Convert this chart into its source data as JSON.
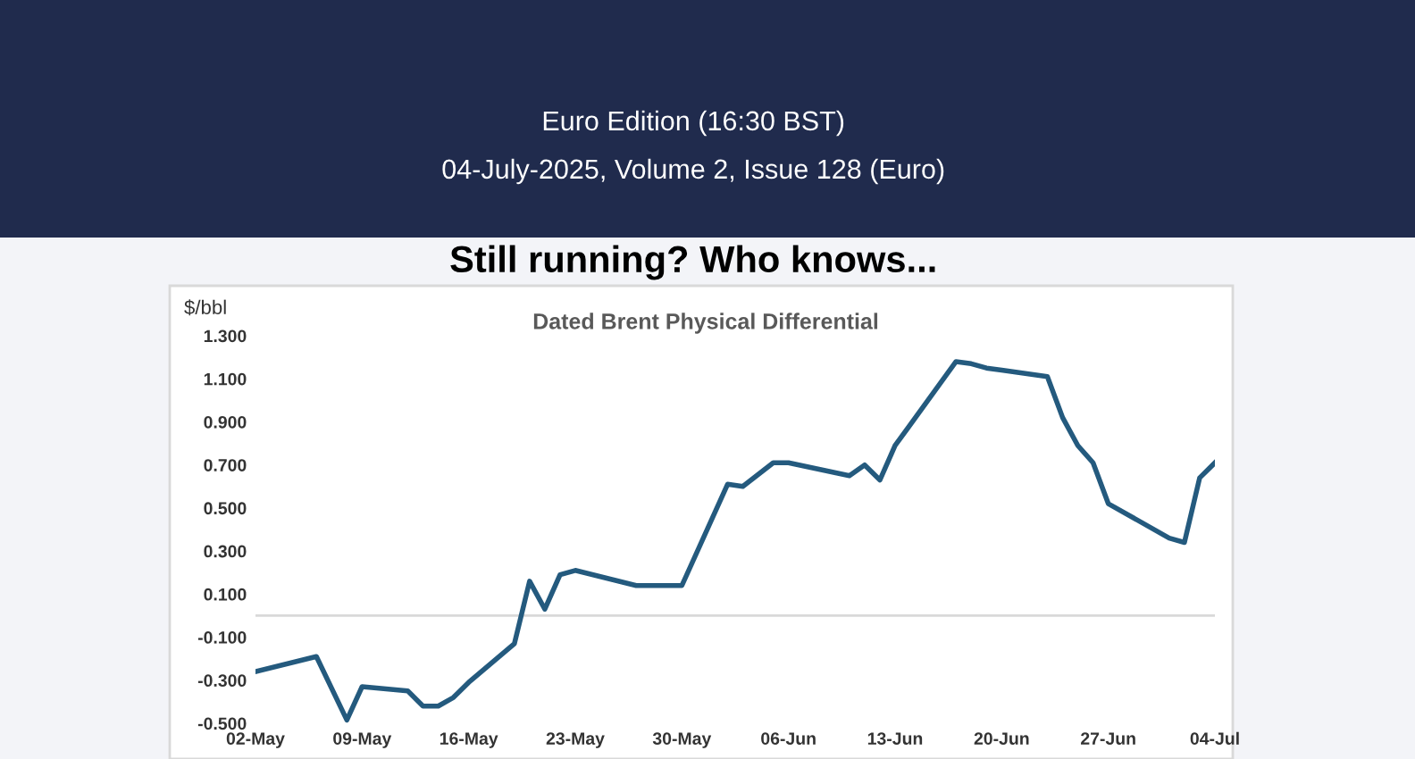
{
  "chart_data": {
    "type": "line",
    "title": "Still running? Who knows...",
    "subtitle": "Dated Brent Physical Differential",
    "ylabel": "$/bbl",
    "annotations": [
      "Euro Edition (16:30 BST)",
      "04-July-2025, Volume 2, Issue 128 (Euro)"
    ],
    "x": [
      "2025-05-02",
      "2025-05-06",
      "2025-05-08",
      "2025-05-09",
      "2025-05-12",
      "2025-05-13",
      "2025-05-14",
      "2025-05-15",
      "2025-05-16",
      "2025-05-19",
      "2025-05-20",
      "2025-05-21",
      "2025-05-22",
      "2025-05-23",
      "2025-05-27",
      "2025-05-30",
      "2025-06-02",
      "2025-06-03",
      "2025-06-05",
      "2025-06-06",
      "2025-06-10",
      "2025-06-11",
      "2025-06-12",
      "2025-06-13",
      "2025-06-17",
      "2025-06-18",
      "2025-06-19",
      "2025-06-20",
      "2025-06-23",
      "2025-06-24",
      "2025-06-25",
      "2025-06-26",
      "2025-06-27",
      "2025-07-01",
      "2025-07-02",
      "2025-07-03",
      "2025-07-04"
    ],
    "series": [
      {
        "color": "#245a7e",
        "values": [
          -0.26,
          -0.19,
          -0.485,
          -0.33,
          -0.35,
          -0.42,
          -0.42,
          -0.38,
          -0.31,
          -0.13,
          0.16,
          0.03,
          0.19,
          0.21,
          0.14,
          0.14,
          0.61,
          0.6,
          0.71,
          0.71,
          0.65,
          0.7,
          0.63,
          0.79,
          1.18,
          1.17,
          1.15,
          1.14,
          1.11,
          0.92,
          0.79,
          0.71,
          0.52,
          0.36,
          0.34,
          0.64,
          0.71
        ]
      }
    ],
    "xlim": [
      "2025-05-02",
      "2025-07-04"
    ],
    "xticks": [
      {
        "value": "2025-05-02",
        "label": "02-May"
      },
      {
        "value": "2025-05-09",
        "label": "09-May"
      },
      {
        "value": "2025-05-16",
        "label": "16-May"
      },
      {
        "value": "2025-05-23",
        "label": "23-May"
      },
      {
        "value": "2025-05-30",
        "label": "30-May"
      },
      {
        "value": "2025-06-06",
        "label": "06-Jun"
      },
      {
        "value": "2025-06-13",
        "label": "13-Jun"
      },
      {
        "value": "2025-06-20",
        "label": "20-Jun"
      },
      {
        "value": "2025-06-27",
        "label": "27-Jun"
      },
      {
        "value": "2025-07-04",
        "label": "04-Jul"
      }
    ],
    "ylim": [
      -0.5,
      1.3
    ],
    "yticks": [
      {
        "value": -0.5,
        "label": "-0.500"
      },
      {
        "value": -0.3,
        "label": "-0.300"
      },
      {
        "value": -0.1,
        "label": "-0.100"
      },
      {
        "value": 0.1,
        "label": "0.100"
      },
      {
        "value": 0.3,
        "label": "0.300"
      },
      {
        "value": 0.5,
        "label": "0.500"
      },
      {
        "value": 0.7,
        "label": "0.700"
      },
      {
        "value": 0.9,
        "label": "0.900"
      },
      {
        "value": 1.1,
        "label": "1.100"
      },
      {
        "value": 1.3,
        "label": "1.300"
      }
    ],
    "ref_lines": [
      {
        "axis": "y",
        "value": 0,
        "color": "#d9d9d9"
      }
    ],
    "grid": false,
    "legend": false
  }
}
